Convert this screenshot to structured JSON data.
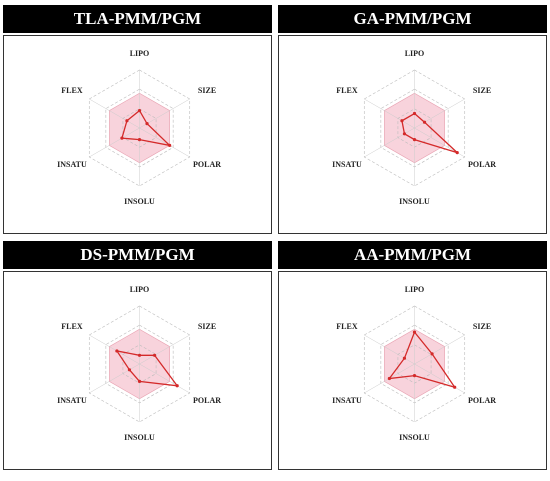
{
  "chart_data": [
    {
      "type": "radar",
      "title": "TLA-PMM/PGM",
      "categories": [
        "LIPO",
        "SIZE",
        "POLAR",
        "INSOLU",
        "INSATU",
        "FLEX"
      ],
      "values": [
        0.3,
        0.15,
        0.6,
        0.2,
        0.35,
        0.25
      ],
      "color": "#d42a2a",
      "ylim": [
        0,
        1
      ],
      "yticks": [
        0.33,
        0.67,
        1
      ],
      "shaded_range": [
        0,
        0.6
      ],
      "shade_color": "#f8d3dc"
    },
    {
      "type": "radar",
      "title": "GA-PMM/PGM",
      "categories": [
        "LIPO",
        "SIZE",
        "POLAR",
        "INSOLU",
        "INSATU",
        "FLEX"
      ],
      "values": [
        0.25,
        0.2,
        0.85,
        0.2,
        0.2,
        0.25
      ],
      "color": "#d42a2a",
      "ylim": [
        0,
        1
      ],
      "yticks": [
        0.33,
        0.67,
        1
      ],
      "shaded_range": [
        0,
        0.6
      ],
      "shade_color": "#f8d3dc"
    },
    {
      "type": "radar",
      "title": "DS-PMM/PGM",
      "categories": [
        "LIPO",
        "SIZE",
        "POLAR",
        "INSOLU",
        "INSATU",
        "FLEX"
      ],
      "values": [
        0.15,
        0.3,
        0.75,
        0.3,
        0.2,
        0.45
      ],
      "color": "#d42a2a",
      "ylim": [
        0,
        1
      ],
      "yticks": [
        0.33,
        0.67,
        1
      ],
      "shaded_range": [
        0,
        0.6
      ],
      "shade_color": "#f8d3dc"
    },
    {
      "type": "radar",
      "title": "AA-PMM/PGM",
      "categories": [
        "LIPO",
        "SIZE",
        "POLAR",
        "INSOLU",
        "INSATU",
        "FLEX"
      ],
      "values": [
        0.55,
        0.35,
        0.8,
        0.2,
        0.5,
        0.2
      ],
      "color": "#d42a2a",
      "ylim": [
        0,
        1
      ],
      "yticks": [
        0.33,
        0.67,
        1
      ],
      "shaded_range": [
        0,
        0.6
      ],
      "shade_color": "#f8d3dc"
    }
  ]
}
